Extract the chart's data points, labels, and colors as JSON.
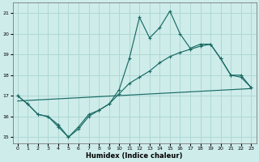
{
  "xlabel": "Humidex (Indice chaleur)",
  "bg_color": "#ceecea",
  "grid_color": "#aed8d4",
  "line_color": "#1a6b65",
  "xlim": [
    -0.5,
    23.5
  ],
  "ylim": [
    14.7,
    21.5
  ],
  "yticks": [
    15,
    16,
    17,
    18,
    19,
    20,
    21
  ],
  "xticks": [
    0,
    1,
    2,
    3,
    4,
    5,
    6,
    7,
    8,
    9,
    10,
    11,
    12,
    13,
    14,
    15,
    16,
    17,
    18,
    19,
    20,
    21,
    22,
    23
  ],
  "line1_x": [
    0,
    1,
    2,
    3,
    4,
    5,
    6,
    7,
    8,
    9,
    10,
    11,
    12,
    13,
    14,
    15,
    16,
    17,
    18,
    19,
    20,
    21,
    22,
    23
  ],
  "line1_y": [
    17.0,
    16.6,
    16.1,
    16.0,
    15.6,
    15.0,
    15.4,
    16.0,
    16.3,
    16.6,
    17.3,
    18.8,
    20.8,
    19.8,
    20.3,
    21.1,
    20.0,
    19.3,
    19.5,
    19.5,
    18.8,
    18.0,
    18.0,
    17.4
  ],
  "line2_x": [
    0,
    1,
    2,
    3,
    4,
    5,
    6,
    7,
    8,
    9,
    10,
    11,
    12,
    13,
    14,
    15,
    16,
    17,
    18,
    19,
    20,
    21,
    22,
    23
  ],
  "line2_y": [
    17.0,
    16.6,
    16.1,
    16.0,
    15.5,
    15.0,
    15.5,
    16.1,
    16.3,
    16.6,
    17.1,
    17.6,
    17.9,
    18.2,
    18.6,
    18.9,
    19.1,
    19.25,
    19.4,
    19.5,
    18.8,
    18.0,
    17.9,
    17.4
  ],
  "line3_x": [
    0,
    23
  ],
  "line3_y": [
    16.75,
    17.35
  ]
}
